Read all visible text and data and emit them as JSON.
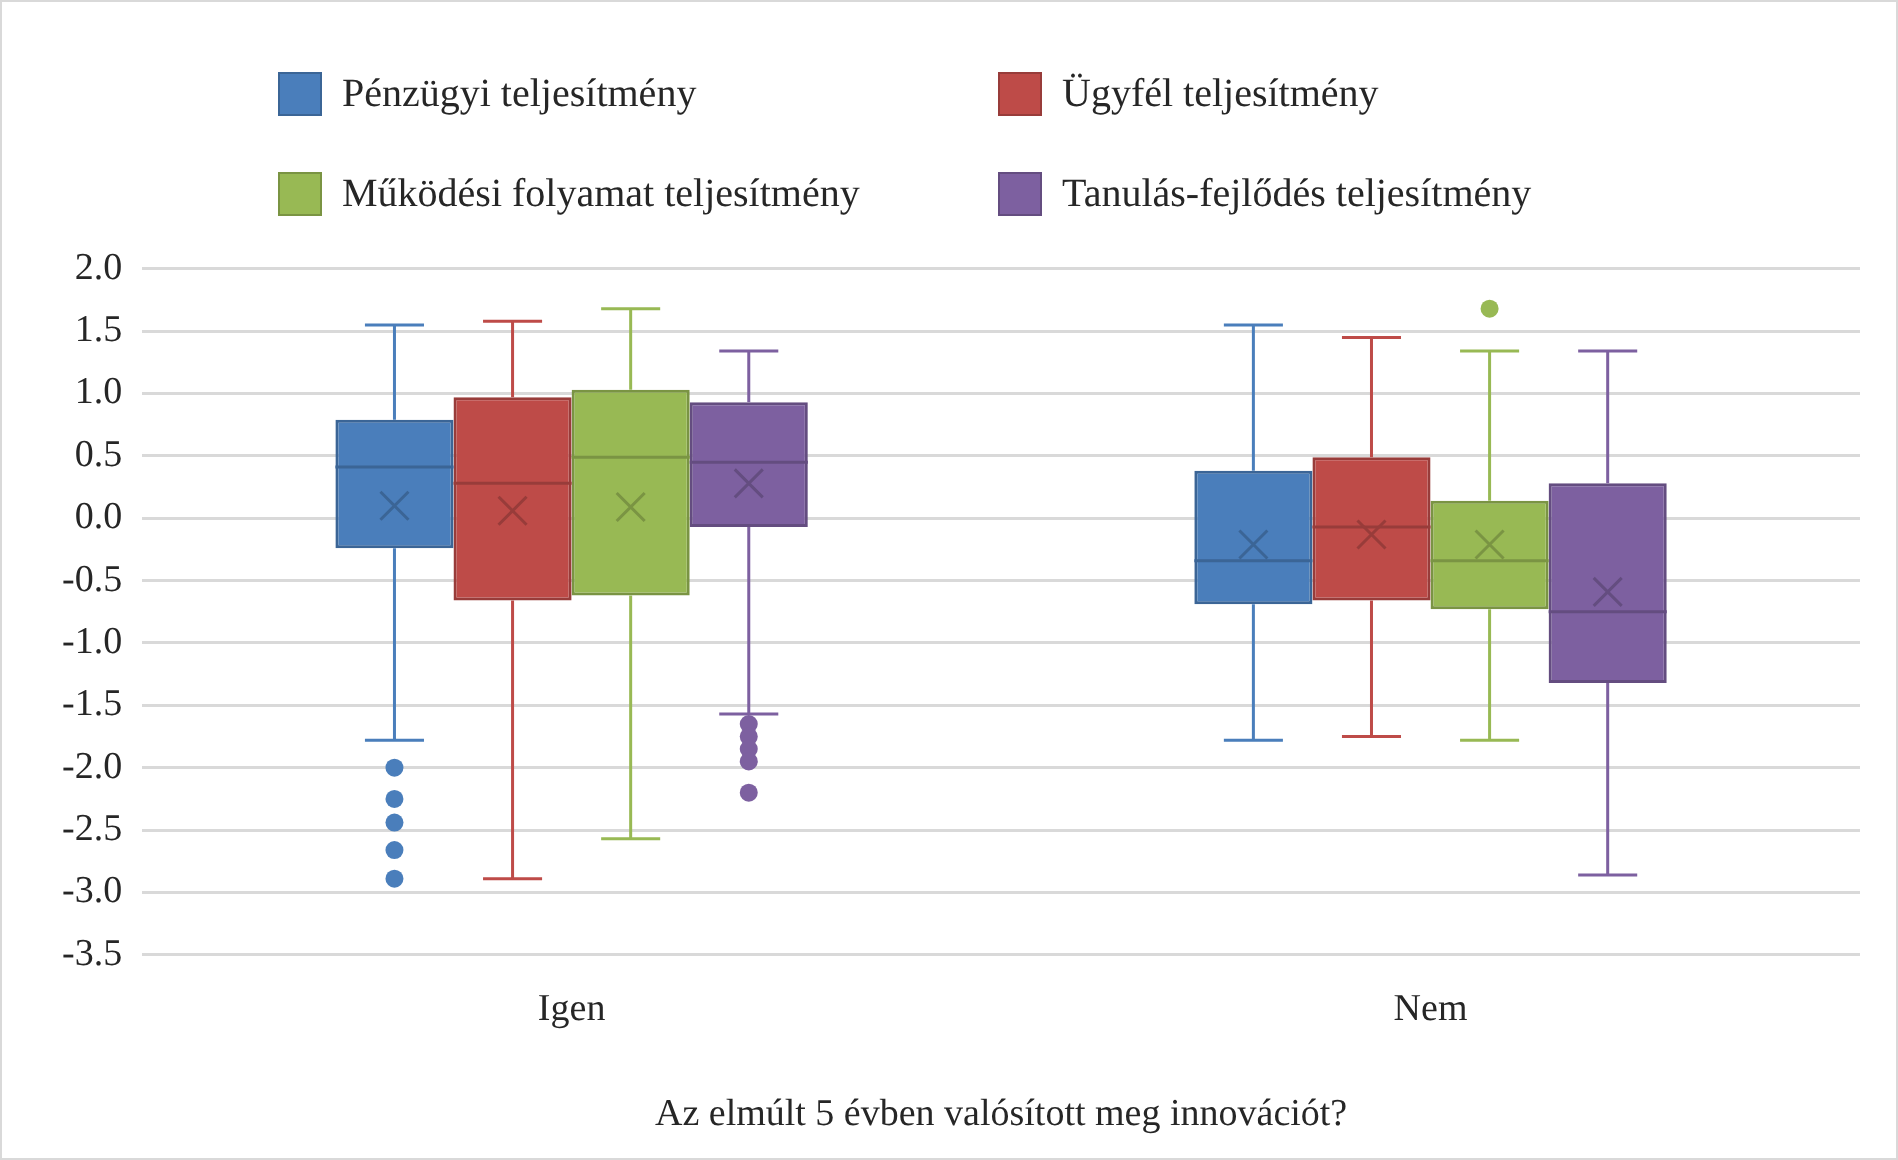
{
  "chart_data": {
    "type": "box",
    "xlabel": "Az elmúlt 5 évben valósított meg innovációt?",
    "categories": [
      "Igen",
      "Nem"
    ],
    "ylim": [
      -3.5,
      2.0
    ],
    "yticks": [
      {
        "value": 2,
        "label": "2.0"
      },
      {
        "value": 1.5,
        "label": "1.5"
      },
      {
        "value": 1,
        "label": "1.0"
      },
      {
        "value": 0.5,
        "label": "0.5"
      },
      {
        "value": 0,
        "label": "0.0"
      },
      {
        "value": -0.5,
        "label": "-0.5"
      },
      {
        "value": -1,
        "label": "-1.0"
      },
      {
        "value": -1.5,
        "label": "-1.5"
      },
      {
        "value": -2,
        "label": "-2.0"
      },
      {
        "value": -2.5,
        "label": "-2.5"
      },
      {
        "value": -3,
        "label": "-3.0"
      },
      {
        "value": -3.5,
        "label": "-3.5"
      }
    ],
    "grid": "y",
    "legend": "top",
    "series": [
      {
        "name": "Pénzügyi teljesítmény",
        "color": "#4a7ebb",
        "boxes": [
          {
            "low": -1.78,
            "q1": -0.24,
            "median": 0.41,
            "q3": 0.79,
            "high": 1.55,
            "mean": 0.1,
            "outliers": [
              -2.0,
              -2.25,
              -2.44,
              -2.66,
              -2.89
            ]
          },
          {
            "low": -1.78,
            "q1": -0.69,
            "median": -0.34,
            "q3": 0.38,
            "high": 1.55,
            "mean": -0.21
          }
        ]
      },
      {
        "name": "Ügyfél teljesítmény",
        "color": "#be4b48",
        "boxes": [
          {
            "low": -2.89,
            "q1": -0.66,
            "median": 0.28,
            "q3": 0.97,
            "high": 1.58,
            "mean": 0.06
          },
          {
            "low": -1.75,
            "q1": -0.66,
            "median": -0.07,
            "q3": 0.49,
            "high": 1.45,
            "mean": -0.13
          }
        ]
      },
      {
        "name": "Működési folyamat teljesítmény",
        "color": "#98b954",
        "boxes": [
          {
            "low": -2.57,
            "q1": -0.62,
            "median": 0.49,
            "q3": 1.03,
            "high": 1.68,
            "mean": 0.09
          },
          {
            "low": -1.78,
            "q1": -0.73,
            "median": -0.34,
            "q3": 0.14,
            "high": 1.34,
            "mean": -0.21,
            "outliers": [
              1.68
            ]
          }
        ]
      },
      {
        "name": "Tanulás-fejlődés teljesítmény",
        "color": "#7d60a0",
        "boxes": [
          {
            "low": -1.57,
            "q1": -0.07,
            "median": 0.45,
            "q3": 0.93,
            "high": 1.34,
            "mean": 0.28,
            "outliers": [
              -1.65,
              -1.75,
              -1.85,
              -1.95,
              -2.2
            ]
          },
          {
            "low": -2.86,
            "q1": -1.32,
            "median": -0.75,
            "q3": 0.28,
            "high": 1.34,
            "mean": -0.59
          }
        ]
      }
    ]
  }
}
